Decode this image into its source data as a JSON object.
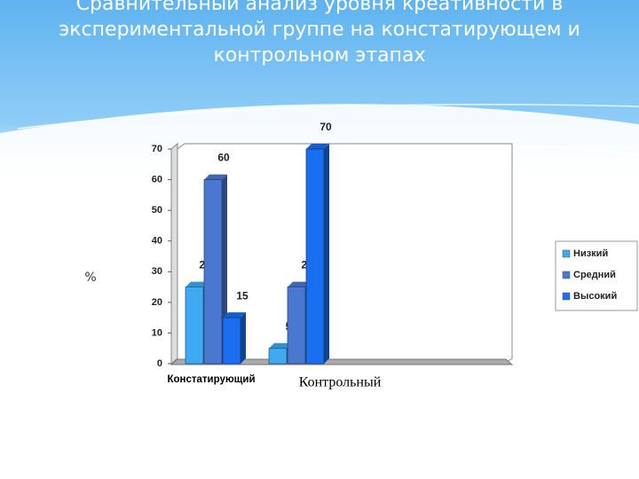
{
  "chart_data": {
    "type": "bar",
    "title": "Сравнительный анализ уровня креативности в экспериментальной группе на констатирующем и контрольном этапах",
    "y_label": "%",
    "categories": [
      "Констатирующий",
      "Контрольный"
    ],
    "series": [
      {
        "name": "Низкий",
        "color": "#3eaaf2",
        "values": [
          25,
          5
        ]
      },
      {
        "name": "Средний",
        "color": "#4a78d0",
        "values": [
          60,
          25
        ]
      },
      {
        "name": "Высокий",
        "color": "#1a6ff0",
        "values": [
          15,
          70
        ]
      }
    ],
    "ylim": [
      0,
      70
    ],
    "yticks": [
      0,
      10,
      20,
      30,
      40,
      50,
      60,
      70
    ],
    "grid": false,
    "legend": "right"
  }
}
